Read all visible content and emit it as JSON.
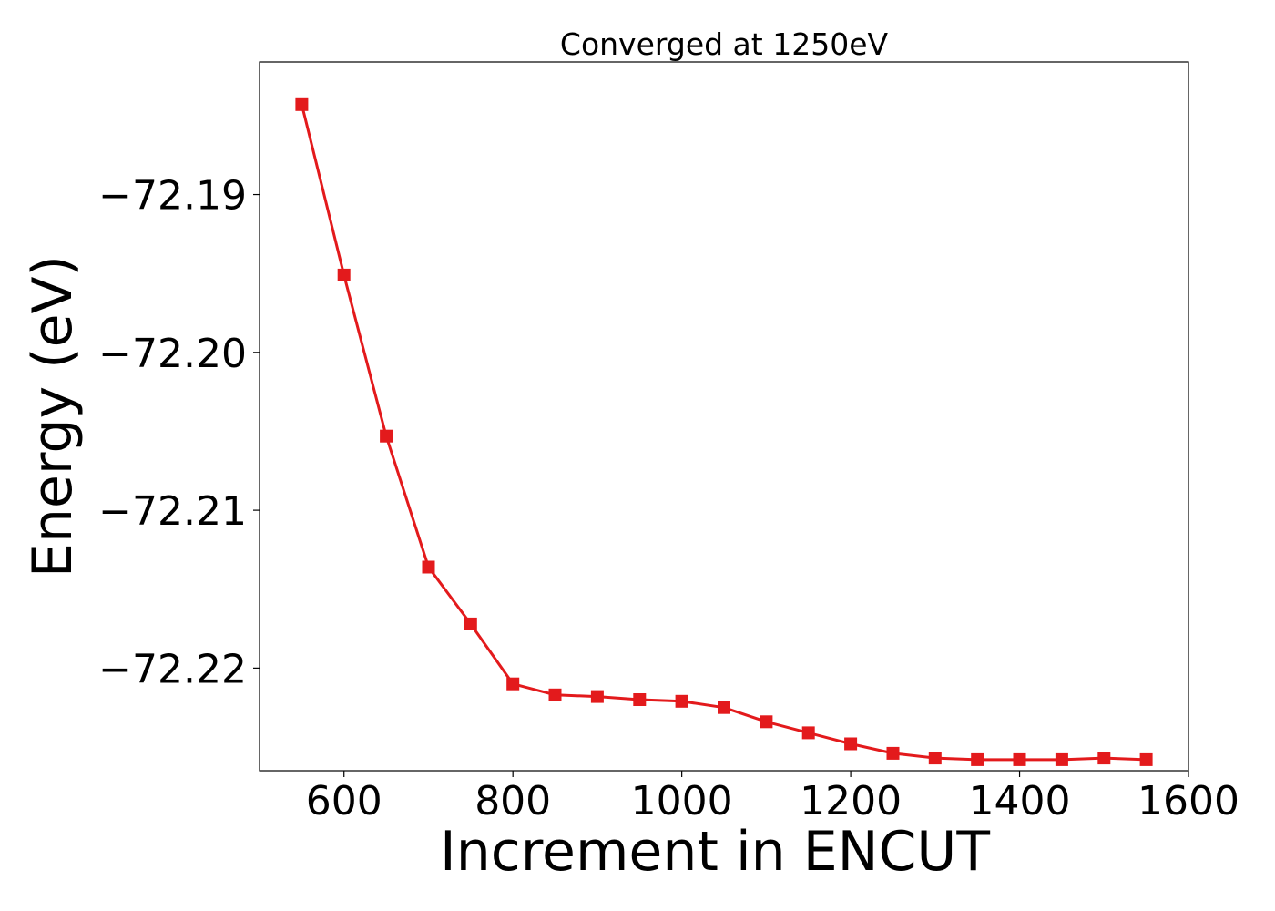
{
  "chart_data": {
    "type": "line",
    "title": "Converged at 1250eV",
    "xlabel": "Increment in ENCUT",
    "ylabel": "Energy (eV)",
    "xlim": [
      500,
      1600
    ],
    "ylim": [
      -72.2265,
      -72.1816
    ],
    "xticks": [
      600,
      800,
      1000,
      1200,
      1400,
      1600
    ],
    "xtick_labels": [
      "600",
      "800",
      "1000",
      "1200",
      "1400",
      "1600"
    ],
    "yticks": [
      -72.19,
      -72.2,
      -72.21,
      -72.22
    ],
    "ytick_labels": [
      "−72.19",
      "−72.20",
      "−72.21",
      "−72.22"
    ],
    "grid": false,
    "color": "#e31a1c",
    "marker": "square",
    "series": [
      {
        "x": [
          550,
          600,
          650,
          700,
          750,
          800,
          850,
          900,
          950,
          1000,
          1050,
          1100,
          1150,
          1200,
          1250,
          1300,
          1350,
          1400,
          1450,
          1500,
          1550
        ],
        "y": [
          -72.1843,
          -72.1951,
          -72.2053,
          -72.2136,
          -72.2172,
          -72.221,
          -72.2217,
          -72.2218,
          -72.222,
          -72.2221,
          -72.2225,
          -72.2234,
          -72.2241,
          -72.2248,
          -72.2254,
          -72.2257,
          -72.2258,
          -72.2258,
          -72.2258,
          -72.2257,
          -72.2258
        ]
      }
    ]
  }
}
